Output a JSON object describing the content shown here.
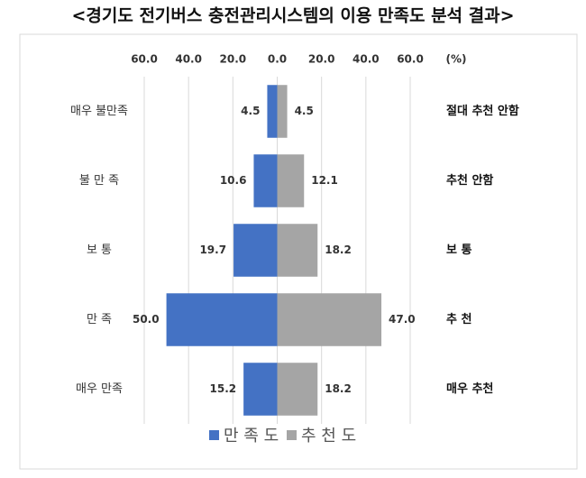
{
  "chart_data": {
    "type": "butterfly",
    "title": "<경기도 전기버스 충전관리시스템의 이용 만족도 분석 결과>",
    "x_unit": "(%)",
    "categories": [
      "매우 불만족",
      "불 만 족",
      "보 통",
      "만 족",
      "매우 만족"
    ],
    "categories_right": [
      "절대 추천 안함",
      "추천 안함",
      "보 통",
      "추 천",
      "매우 추천"
    ],
    "series": [
      {
        "name": "만 족 도",
        "color": "#4472c4",
        "side": "left",
        "values": [
          4.5,
          10.6,
          19.7,
          50.0,
          15.2
        ],
        "value_labels": [
          "4.5",
          "10.6",
          "19.7",
          "50.0",
          "15.2"
        ]
      },
      {
        "name": "추 천 도",
        "color": "#a5a5a5",
        "side": "right",
        "values": [
          4.5,
          12.1,
          18.2,
          47.0,
          18.2
        ],
        "value_labels": [
          "4.5",
          "12.1",
          "18.2",
          "47.0",
          "18.2"
        ]
      }
    ],
    "xlim": [
      -60,
      60
    ],
    "xticks": [
      {
        "value": -60,
        "label": "60.0"
      },
      {
        "value": -40,
        "label": "40.0"
      },
      {
        "value": -20,
        "label": "20.0"
      },
      {
        "value": 0,
        "label": "0.0"
      },
      {
        "value": 20,
        "label": "20.0"
      },
      {
        "value": 40,
        "label": "40.0"
      },
      {
        "value": 60,
        "label": "60.0"
      }
    ],
    "grid": true,
    "legend": "bottom"
  }
}
